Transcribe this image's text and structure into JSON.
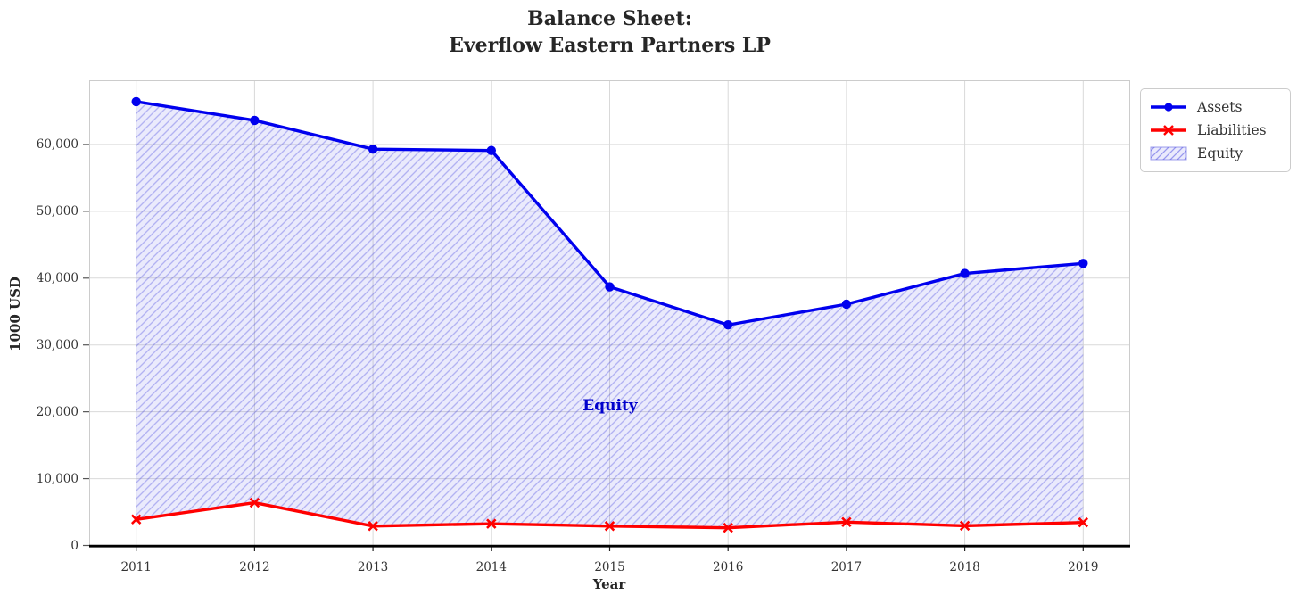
{
  "title": {
    "line1": "Balance Sheet:",
    "line2": "Everflow Eastern Partners LP"
  },
  "chart_data": {
    "type": "line",
    "x": [
      2011,
      2012,
      2013,
      2014,
      2015,
      2016,
      2017,
      2018,
      2019
    ],
    "series": [
      {
        "name": "Assets",
        "color": "#0000ee",
        "marker": "circle",
        "values": [
          66400,
          63600,
          59300,
          59100,
          38700,
          33000,
          36100,
          40700,
          42200
        ]
      },
      {
        "name": "Liabilities",
        "color": "#ff0000",
        "marker": "x",
        "values": [
          3900,
          6400,
          2900,
          3250,
          2900,
          2650,
          3500,
          2950,
          3450
        ]
      }
    ],
    "fill_between": {
      "name": "Equity",
      "upper": "Assets",
      "lower": "Liabilities",
      "annotation": "Equity",
      "annotation_color": "#0000cc",
      "fill_rgba": "rgba(50,50,230,0.10)",
      "hatch_rgba": "rgba(50,50,220,0.30)",
      "hatch_style": "///"
    },
    "xlabel": "Year",
    "ylabel": "1000 USD",
    "ylim": [
      0,
      69600
    ],
    "yticks": [
      0,
      10000,
      20000,
      30000,
      40000,
      50000,
      60000
    ],
    "ytick_labels": [
      "0",
      "10,000",
      "20,000",
      "30,000",
      "40,000",
      "50,000",
      "60,000"
    ],
    "grid": true,
    "grid_color": "#d9d9d9",
    "spine_color": "#cccccc",
    "bottom_spine_color": "#000000",
    "legend_position": "outside-upper-right",
    "legend_entries": [
      {
        "label": "Assets"
      },
      {
        "label": "Liabilities"
      },
      {
        "label": "Equity"
      }
    ]
  }
}
